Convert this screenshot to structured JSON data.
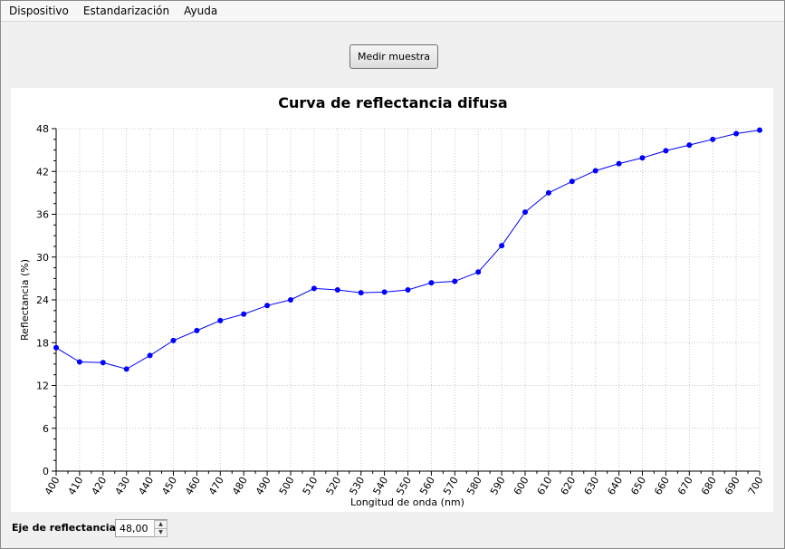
{
  "menu": {
    "items": [
      "Dispositivo",
      "Estandarización",
      "Ayuda"
    ]
  },
  "toolbar": {
    "measure_label": "Medir muestra"
  },
  "chart_data": {
    "type": "line",
    "title": "Curva de reflectancia difusa",
    "xlabel": "Longitud de onda (nm)",
    "ylabel": "Reflectancia (%)",
    "xlim": [
      400,
      700
    ],
    "ylim": [
      0,
      48
    ],
    "x_ticks": [
      400,
      410,
      420,
      430,
      440,
      450,
      460,
      470,
      480,
      490,
      500,
      510,
      520,
      530,
      540,
      550,
      560,
      570,
      580,
      590,
      600,
      610,
      620,
      630,
      640,
      650,
      660,
      670,
      680,
      690,
      700
    ],
    "y_ticks": [
      0,
      6,
      12,
      18,
      24,
      30,
      36,
      42,
      48
    ],
    "grid": true,
    "color": "#0000ff",
    "x": [
      400,
      410,
      420,
      430,
      440,
      450,
      460,
      470,
      480,
      490,
      500,
      510,
      520,
      530,
      540,
      550,
      560,
      570,
      580,
      590,
      600,
      610,
      620,
      630,
      640,
      650,
      660,
      670,
      680,
      690,
      700
    ],
    "y": [
      17.3,
      15.3,
      15.2,
      14.3,
      16.2,
      18.3,
      19.7,
      21.1,
      22.0,
      23.2,
      24.0,
      25.6,
      25.4,
      25.0,
      25.1,
      25.4,
      26.4,
      26.6,
      27.9,
      31.6,
      36.3,
      39.0,
      40.6,
      42.1,
      43.1,
      43.9,
      44.9,
      45.7,
      46.5,
      47.3,
      47.8
    ]
  },
  "reflectance_axis": {
    "label": "Eje de reflectancia:",
    "value": "48,00"
  }
}
